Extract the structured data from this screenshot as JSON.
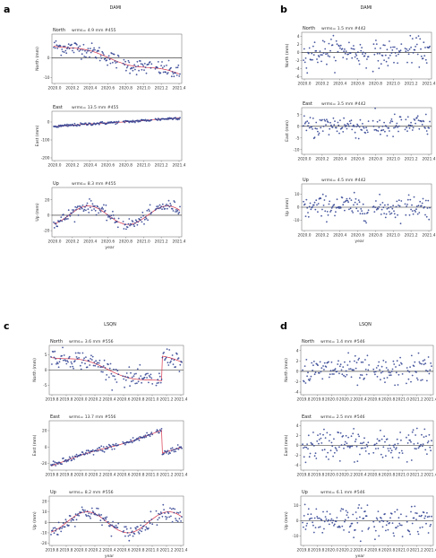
{
  "panels": [
    {
      "label": "a",
      "station": "DAMI",
      "xlabel": "year",
      "subplots": [
        {
          "component": "North",
          "stats": "wrms=  4.9 mm  #455",
          "ylabel": "North (mm)",
          "yticks": [
            "0",
            "-10"
          ],
          "ylim": [
            -13,
            12
          ],
          "zero": true,
          "model": true,
          "xticks": [
            "2020.0",
            "2020.2",
            "2020.4",
            "2020.6",
            "2020.8",
            "2021.0",
            "2021.2",
            "2021.4"
          ],
          "trend": [
            7,
            -9
          ],
          "seasonal": 1.2,
          "noise": 2.0
        },
        {
          "component": "East",
          "stats": "wrms=  13.5 mm  #455",
          "ylabel": "East (mm)",
          "yticks": [
            "0",
            "-100",
            "-200"
          ],
          "ylim": [
            -215,
            60
          ],
          "zero": false,
          "model": true,
          "xticks": [
            "2020.0",
            "2020.2",
            "2020.4",
            "2020.6",
            "2020.8",
            "2021.0",
            "2021.2",
            "2021.4"
          ],
          "trend": [
            -25,
            22
          ],
          "seasonal": 1,
          "noise": 4
        },
        {
          "component": "Up",
          "stats": "wrms=  8.3 mm  #455",
          "ylabel": "Up (mm)",
          "yticks": [
            "20",
            "0",
            "-20"
          ],
          "ylim": [
            -28,
            36
          ],
          "zero": true,
          "model": true,
          "xticks": [
            "2020.0",
            "2020.2",
            "2020.4",
            "2020.6",
            "2020.8",
            "2021.0",
            "2021.2",
            "2021.4"
          ],
          "trend": [
            0,
            0
          ],
          "seasonal": 12,
          "noise": 4
        }
      ]
    },
    {
      "label": "b",
      "station": "DAMI",
      "xlabel": "year",
      "subplots": [
        {
          "component": "North",
          "stats": "wrms=  1.5 mm  #442",
          "ylabel": "North (mm)",
          "yticks": [
            "4",
            "2",
            "0",
            "-2",
            "-4",
            "-6"
          ],
          "ylim": [
            -6.5,
            5
          ],
          "zero": true,
          "model": false,
          "xticks": [
            "2020.0",
            "2020.2",
            "2020.4",
            "2020.6",
            "2020.8",
            "2021.0",
            "2021.2",
            "2021.4"
          ],
          "trend": [
            0,
            0
          ],
          "seasonal": 0.5,
          "noise": 1.6
        },
        {
          "component": "East",
          "stats": "wrms=  3.5 mm  #442",
          "ylabel": "East (mm)",
          "yticks": [
            "5",
            "0",
            "-5",
            "-10"
          ],
          "ylim": [
            -12,
            8
          ],
          "zero": true,
          "model": false,
          "xticks": [
            "2020.0",
            "2020.2",
            "2020.4",
            "2020.6",
            "2020.8",
            "2021.0",
            "2021.2",
            "2021.4"
          ],
          "trend": [
            0,
            0
          ],
          "seasonal": 0.5,
          "noise": 2.5
        },
        {
          "component": "Up",
          "stats": "wrms=  4.5 mm  #442",
          "ylabel": "Up (mm)",
          "yticks": [
            "10",
            "0",
            "-10"
          ],
          "ylim": [
            -18,
            18
          ],
          "zero": true,
          "model": false,
          "xticks": [
            "2020.0",
            "2020.2",
            "2020.4",
            "2020.6",
            "2020.8",
            "2021.0",
            "2021.2",
            "2021.4"
          ],
          "trend": [
            0,
            0
          ],
          "seasonal": 1,
          "noise": 4.5
        }
      ]
    },
    {
      "label": "c",
      "station": "LSQN",
      "xlabel": "year",
      "subplots": [
        {
          "component": "North",
          "stats": "wrms=  3.6 mm  #556",
          "ylabel": "North (mm)",
          "yticks": [
            "5",
            "0",
            "-5"
          ],
          "ylim": [
            -8,
            8
          ],
          "zero": true,
          "model": true,
          "xticks": [
            "2019.8",
            "2019.8",
            "2020.0",
            "2020.2",
            "2020.4",
            "2020.6",
            "2020.8",
            "2021.0",
            "2021.2",
            "2021.4"
          ],
          "trend": [
            5,
            -6
          ],
          "seasonal": 1,
          "noise": 1.5,
          "jump": [
            0.85,
            8
          ]
        },
        {
          "component": "East",
          "stats": "wrms=  13.7 mm  #556",
          "ylabel": "East (mm)",
          "yticks": [
            "20",
            "0",
            "-20"
          ],
          "ylim": [
            -28,
            32
          ],
          "zero": false,
          "model": true,
          "xticks": [
            "2019.8",
            "2019.8",
            "2020.0",
            "2020.2",
            "2020.4",
            "2020.6",
            "2020.8",
            "2021.0",
            "2021.2",
            "2021.4"
          ],
          "trend": [
            -22,
            27
          ],
          "seasonal": 1,
          "noise": 2,
          "jump": [
            0.85,
            -28
          ]
        },
        {
          "component": "Up",
          "stats": "wrms=  8.2 mm  #556",
          "ylabel": "Up (mm)",
          "yticks": [
            "20",
            "10",
            "0",
            "-10",
            "-20"
          ],
          "ylim": [
            -22,
            25
          ],
          "zero": true,
          "model": true,
          "xticks": [
            "2019.8",
            "2019.8",
            "2020.0",
            "2020.2",
            "2020.4",
            "2020.6",
            "2020.8",
            "2021.0",
            "2021.2",
            "2021.4"
          ],
          "trend": [
            0,
            0
          ],
          "seasonal": 10,
          "noise": 3.5
        }
      ]
    },
    {
      "label": "d",
      "station": "LSQN",
      "xlabel": "year",
      "subplots": [
        {
          "component": "North",
          "stats": "wrms=  1.4 mm  #546",
          "ylabel": "North (mm)",
          "yticks": [
            "4",
            "2",
            "0",
            "-2",
            "-4"
          ],
          "ylim": [
            -4.5,
            5
          ],
          "zero": true,
          "model": false,
          "xticks": [
            "2019.8",
            "2019.8",
            "2020.0",
            "2020.2",
            "2020.4",
            "2020.6",
            "2020.8",
            "2021.0",
            "2021.2",
            "2021.4"
          ],
          "trend": [
            0,
            0
          ],
          "seasonal": 0.4,
          "noise": 1.4
        },
        {
          "component": "East",
          "stats": "wrms=  2.5 mm  #546",
          "ylabel": "East (mm)",
          "yticks": [
            "4",
            "2",
            "0",
            "-2",
            "-4"
          ],
          "ylim": [
            -5,
            5
          ],
          "zero": true,
          "model": false,
          "xticks": [
            "2019.8",
            "2019.8",
            "2020.0",
            "2020.2",
            "2020.4",
            "2020.6",
            "2020.8",
            "2021.0",
            "2021.2",
            "2021.4"
          ],
          "trend": [
            0,
            0
          ],
          "seasonal": 0.4,
          "noise": 1.6
        },
        {
          "component": "Up",
          "stats": "wrms=  6.1 mm  #546",
          "ylabel": "Up (mm)",
          "yticks": [
            "10",
            "0",
            "-10"
          ],
          "ylim": [
            -16,
            16
          ],
          "zero": true,
          "model": false,
          "xticks": [
            "2019.8",
            "2019.8",
            "2020.0",
            "2020.2",
            "2020.4",
            "2020.6",
            "2020.8",
            "2021.0",
            "2021.2",
            "2021.4"
          ],
          "trend": [
            0,
            0
          ],
          "seasonal": 1,
          "noise": 5
        }
      ]
    }
  ],
  "colors": {
    "points": "#2b3d8f",
    "model": "#d8344a",
    "frame": "#666666",
    "zero": "#222222"
  },
  "chart_data": [
    {
      "type": "scatter",
      "title": "DAMI",
      "panel": "a",
      "xlabel": "year",
      "series": [
        {
          "name": "North",
          "trend_start_mm": 7,
          "trend_end_mm": -9,
          "wrms_mm": 4.9,
          "n": 455
        },
        {
          "name": "East",
          "trend_start_mm": -25,
          "trend_end_mm": 22,
          "wrms_mm": 13.5,
          "n": 455
        },
        {
          "name": "Up",
          "seasonal_amplitude_mm": 12,
          "wrms_mm": 8.3,
          "n": 455
        }
      ]
    },
    {
      "type": "scatter",
      "title": "DAMI",
      "panel": "b",
      "xlabel": "year",
      "series": [
        {
          "name": "North",
          "wrms_mm": 1.5,
          "n": 442
        },
        {
          "name": "East",
          "wrms_mm": 3.5,
          "n": 442
        },
        {
          "name": "Up",
          "wrms_mm": 4.5,
          "n": 442
        }
      ]
    },
    {
      "type": "scatter",
      "title": "LSQN",
      "panel": "c",
      "xlabel": "year",
      "series": [
        {
          "name": "North",
          "trend_start_mm": 5,
          "trend_end_mm": -6,
          "wrms_mm": 3.6,
          "n": 556
        },
        {
          "name": "East",
          "trend_start_mm": -22,
          "trend_end_mm": 27,
          "wrms_mm": 13.7,
          "n": 556
        },
        {
          "name": "Up",
          "seasonal_amplitude_mm": 10,
          "wrms_mm": 8.2,
          "n": 556
        }
      ]
    },
    {
      "type": "scatter",
      "title": "LSQN",
      "panel": "d",
      "xlabel": "year",
      "series": [
        {
          "name": "North",
          "wrms_mm": 1.4,
          "n": 546
        },
        {
          "name": "East",
          "wrms_mm": 2.5,
          "n": 546
        },
        {
          "name": "Up",
          "wrms_mm": 6.1,
          "n": 546
        }
      ]
    }
  ]
}
